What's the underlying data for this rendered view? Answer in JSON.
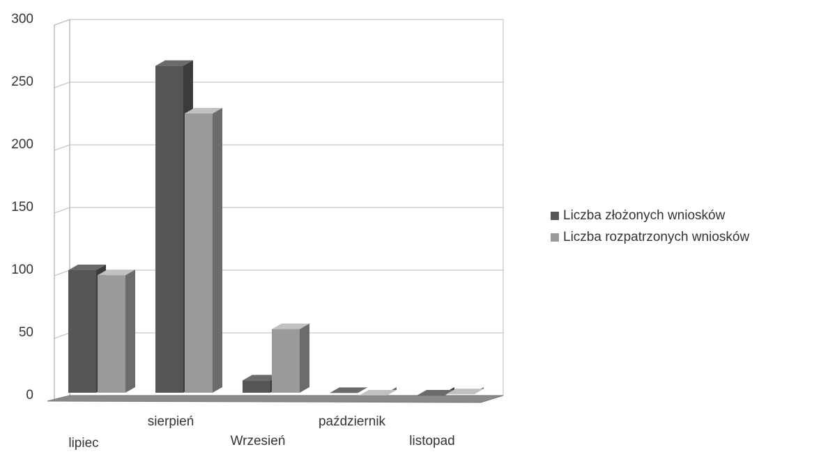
{
  "chart_data": {
    "type": "bar3d",
    "categories": [
      "lipiec",
      "sierpień",
      "Wrzesień",
      "październik",
      "listopad"
    ],
    "series": [
      {
        "name": "Liczba złożonych wniosków",
        "color": "#555555",
        "values": [
          100,
          263,
          12,
          2,
          0
        ]
      },
      {
        "name": "Liczba rozpatrzonych wniosków",
        "color": "#9a9a9a",
        "values": [
          96,
          225,
          53,
          0,
          1
        ]
      }
    ],
    "ylim": [
      0,
      300
    ],
    "yticks": [
      0,
      50,
      100,
      150,
      200,
      250,
      300
    ],
    "grid": true,
    "legend": "right"
  }
}
